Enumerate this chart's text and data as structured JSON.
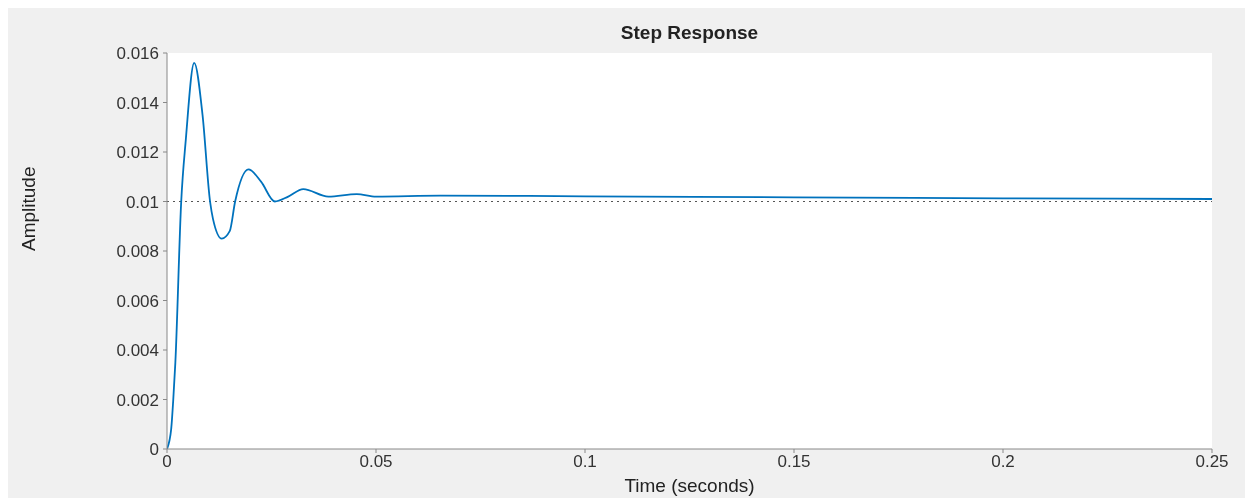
{
  "chart_data": {
    "type": "line",
    "title": "Step Response",
    "xlabel": "Time (seconds)",
    "ylabel": "Amplitude",
    "x": [
      0,
      0.001,
      0.0015,
      0.002,
      0.0034,
      0.0045,
      0.0065,
      0.0085,
      0.0103,
      0.011,
      0.0131,
      0.015,
      0.0163,
      0.0195,
      0.0225,
      0.0258,
      0.029,
      0.0326,
      0.0386,
      0.0454,
      0.05,
      0.0654,
      0.1,
      0.15,
      0.2,
      0.25
    ],
    "series": [
      {
        "color": "#0072bd",
        "values": [
          0,
          0.0008,
          0.002,
          0.0035,
          0.01,
          0.0125,
          0.0156,
          0.0135,
          0.01,
          0.0093,
          0.0085,
          0.0088,
          0.01,
          0.0113,
          0.0108,
          0.01,
          0.0102,
          0.0105,
          0.0102,
          0.0103,
          0.0102,
          0.01024,
          0.01021,
          0.01017,
          0.01013,
          0.0101
        ]
      }
    ],
    "xlim": [
      0,
      0.25
    ],
    "xticks": [
      0,
      0.05,
      0.1,
      0.15,
      0.2,
      0.25
    ],
    "ylim": [
      0,
      0.016
    ],
    "yticks": [
      0,
      0.002,
      0.004,
      0.006,
      0.008,
      0.01,
      0.012,
      0.014,
      0.016
    ],
    "ref_lines": [
      {
        "axis": "y",
        "value": 0.01,
        "color": "#555555",
        "line_style": "dotted"
      }
    ],
    "grid": false,
    "legend": false,
    "marker": "none",
    "line_style": "solid"
  }
}
